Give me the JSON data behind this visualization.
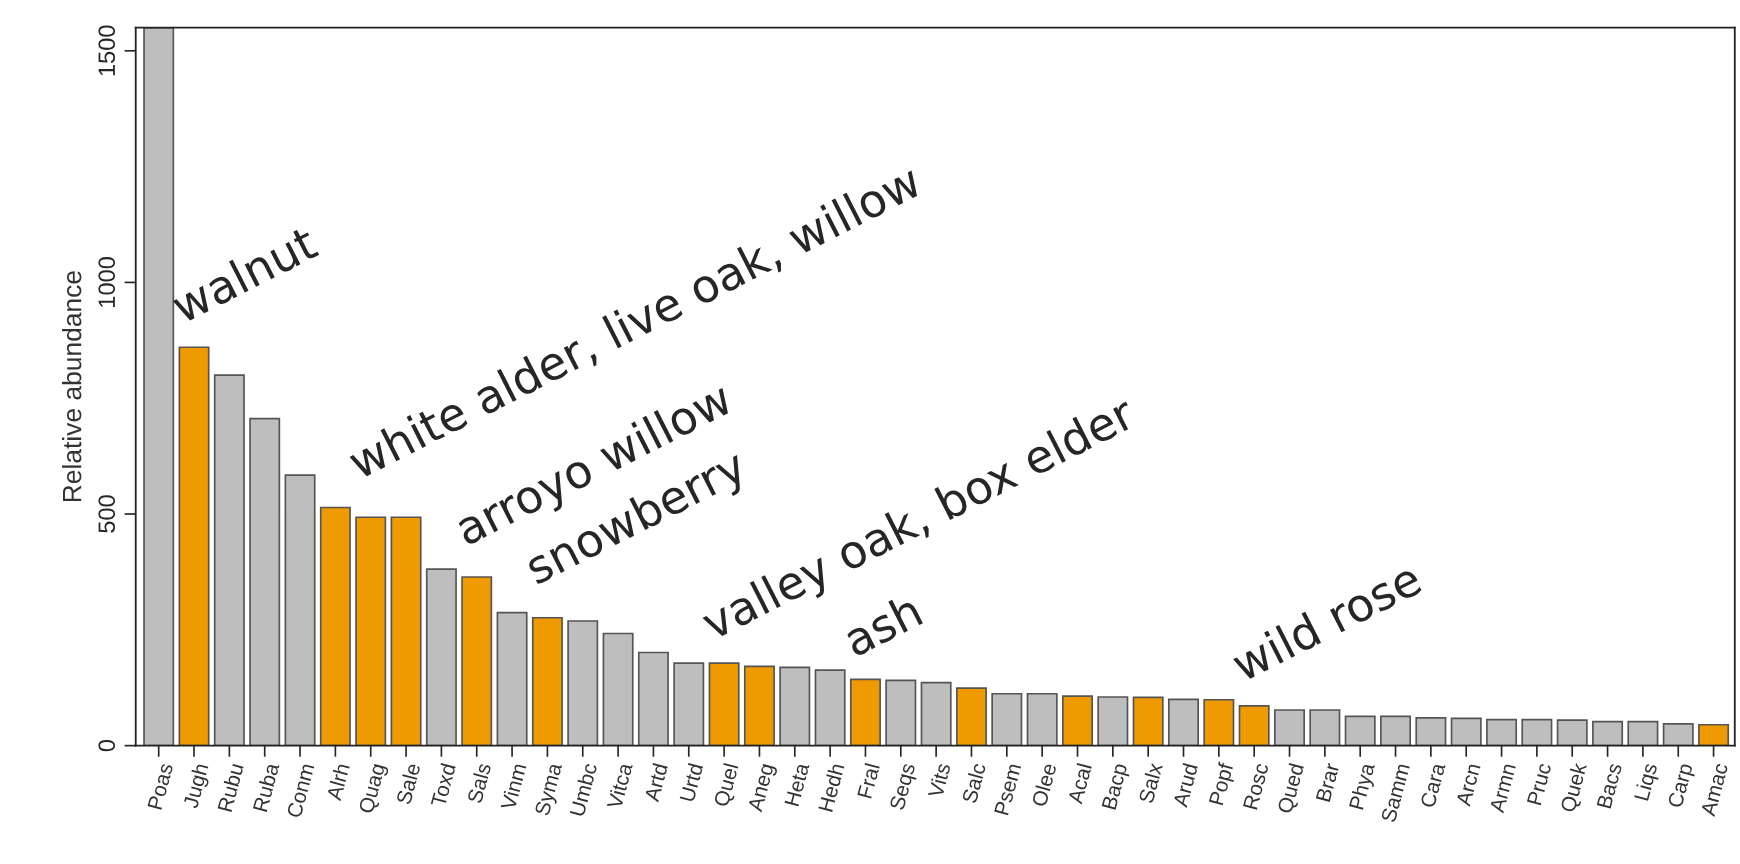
{
  "chart_data": {
    "type": "bar",
    "ylabel": "Relative abundance",
    "categories": [
      "Poas",
      "Jugh",
      "Rubu",
      "Ruba",
      "Conm",
      "Alrh",
      "Quag",
      "Sale",
      "Toxd",
      "Sals",
      "Vinm",
      "Syma",
      "Umbc",
      "Vitca",
      "Artd",
      "Urtd",
      "Quel",
      "Aneg",
      "Heta",
      "Hedh",
      "Fral",
      "Seqs",
      "Vits",
      "Salc",
      "Psem",
      "Olee",
      "Acal",
      "Bacp",
      "Salx",
      "Arud",
      "Popf",
      "Rosc",
      "Qued",
      "Brar",
      "Phya",
      "Samm",
      "Cara",
      "Arcn",
      "Armn",
      "Pruc",
      "Quek",
      "Bacs",
      "Liqs",
      "Carp",
      "Amac"
    ],
    "values": [
      1550,
      860,
      800,
      706,
      584,
      514,
      493,
      493,
      381,
      364,
      287,
      276,
      269,
      242,
      201,
      178,
      178,
      171,
      169,
      163,
      143,
      141,
      136,
      124,
      112,
      112,
      107,
      105,
      104,
      100,
      99,
      86,
      77,
      77,
      63,
      63,
      60,
      59,
      56,
      56,
      55,
      52,
      52,
      47,
      45
    ],
    "colors": [
      "#bebebe",
      "#ee9a00",
      "#bebebe",
      "#bebebe",
      "#bebebe",
      "#ee9a00",
      "#ee9a00",
      "#ee9a00",
      "#bebebe",
      "#ee9a00",
      "#bebebe",
      "#ee9a00",
      "#bebebe",
      "#bebebe",
      "#bebebe",
      "#bebebe",
      "#ee9a00",
      "#ee9a00",
      "#bebebe",
      "#bebebe",
      "#ee9a00",
      "#bebebe",
      "#bebebe",
      "#ee9a00",
      "#bebebe",
      "#bebebe",
      "#ee9a00",
      "#bebebe",
      "#ee9a00",
      "#bebebe",
      "#ee9a00",
      "#ee9a00",
      "#bebebe",
      "#bebebe",
      "#bebebe",
      "#bebebe",
      "#bebebe",
      "#bebebe",
      "#bebebe",
      "#bebebe",
      "#bebebe",
      "#bebebe",
      "#bebebe",
      "#bebebe",
      "#ee9a00"
    ],
    "ylim": [
      0,
      1550
    ],
    "yticks": [
      0,
      500,
      1000,
      1500
    ],
    "grid": false,
    "annotations": [
      "walnut",
      "white alder, live oak, willow",
      "arroyo willow",
      "snowberry",
      "valley oak, box elder",
      "ash",
      "wild rose"
    ]
  }
}
